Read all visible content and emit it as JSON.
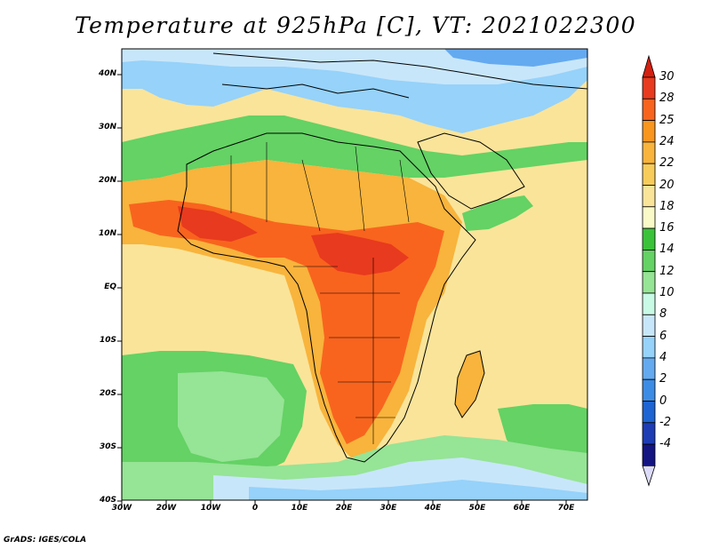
{
  "title": "Temperature at 925hPa [C], VT: 2021022300",
  "credit": "GrADS: IGES/COLA",
  "lat_labels": [
    "40N",
    "30N",
    "20N",
    "10N",
    "EQ",
    "10S",
    "20S",
    "30S",
    "40S"
  ],
  "lon_labels": [
    "30W",
    "20W",
    "10W",
    "0",
    "10E",
    "20E",
    "30E",
    "40E",
    "50E",
    "60E",
    "70E"
  ],
  "colorbar": {
    "labels": [
      "30",
      "28",
      "25",
      "24",
      "22",
      "20",
      "18",
      "16",
      "14",
      "12",
      "10",
      "8",
      "6",
      "4",
      "2",
      "0",
      "-2",
      "-4"
    ],
    "colors": [
      "#e83a1e",
      "#f8641e",
      "#f8961e",
      "#f8b43c",
      "#f8cc5a",
      "#fae49a",
      "#fafac8",
      "#3ac33a",
      "#64d264",
      "#96e496",
      "#c8fae6",
      "#c8e6fa",
      "#96d2fa",
      "#64aaf0",
      "#3c8ce6",
      "#1e64d2",
      "#1e3cb4",
      "#141482"
    ],
    "over_color": "#d42010",
    "under_color": "#dcdcfa"
  },
  "map": {
    "ocean_color": "#fae49a",
    "background_color": "#fafac8",
    "north_cool_color": "#96d2fa",
    "north_mid_color": "#c8e6fa",
    "north_deep_color": "#64aaf0",
    "green_color": "#64d264",
    "light_green_color": "#96e496",
    "warm_color": "#f8b43c",
    "hot_color": "#f8641e",
    "hottest_color": "#e83a1e",
    "border_color": "#000000"
  }
}
